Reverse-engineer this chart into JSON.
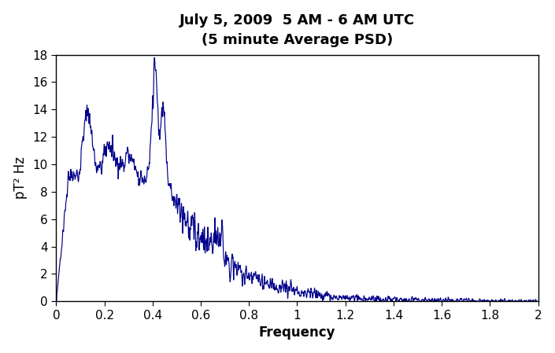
{
  "title_line1": "July 5, 2009  5 AM - 6 AM UTC",
  "title_line2": "(5 minute Average PSD)",
  "xlabel": "Frequency",
  "ylabel": "pT² Hz",
  "xlim": [
    0,
    2
  ],
  "ylim": [
    0,
    18
  ],
  "yticks": [
    0,
    2,
    4,
    6,
    8,
    10,
    12,
    14,
    16,
    18
  ],
  "xticks": [
    0,
    0.2,
    0.4,
    0.6,
    0.8,
    1.0,
    1.2,
    1.4,
    1.6,
    1.8,
    2.0
  ],
  "line_color": "#00008B",
  "background_color": "#ffffff",
  "title_fontsize": 13,
  "label_fontsize": 12,
  "tick_fontsize": 11
}
